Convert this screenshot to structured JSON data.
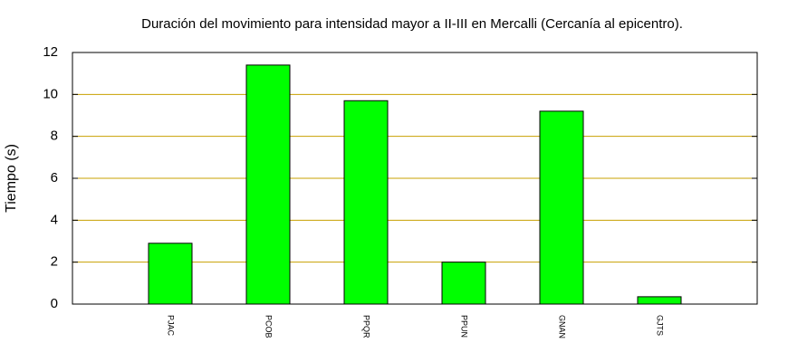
{
  "chart_data": {
    "type": "bar",
    "title": "Duración del movimiento para intensidad mayor a II-III en Mercalli (Cercanía al epicentro).",
    "y_label": "Tiempo (s)",
    "categories": [
      "PJAC",
      "PCOB",
      "PPQR",
      "PPUN",
      "GNAN",
      "GJTS"
    ],
    "values": [
      2.9,
      11.4,
      9.7,
      2.0,
      9.2,
      0.35
    ],
    "color": "#00ff00",
    "grid_color": "#c8a000",
    "ylim": [
      0,
      12
    ],
    "yticks": [
      0,
      2,
      4,
      6,
      8,
      10,
      12
    ],
    "grid": true
  }
}
